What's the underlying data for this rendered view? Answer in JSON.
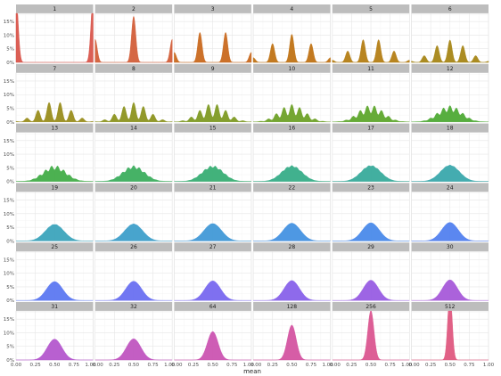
{
  "chart_data": {
    "type": "area",
    "xlabel": "mean",
    "ylabel": "",
    "xlim": [
      0,
      1
    ],
    "ylim": [
      0,
      0.18
    ],
    "x_ticks": [
      "0.00",
      "0.25",
      "0.50",
      "0.75",
      "1.00"
    ],
    "y_ticks": [
      "0%",
      "5%",
      "10%",
      "15%"
    ],
    "y_tick_values": [
      0,
      0.05,
      0.1,
      0.15
    ],
    "grid": true,
    "legend": "none",
    "layout": {
      "rows": 6,
      "cols": 6
    },
    "panels": [
      {
        "label": "1",
        "n": 1,
        "color": "#d9564c"
      },
      {
        "label": "2",
        "n": 2,
        "color": "#d35f3a"
      },
      {
        "label": "3",
        "n": 3,
        "color": "#c9691f"
      },
      {
        "label": "4",
        "n": 4,
        "color": "#c07315"
      },
      {
        "label": "5",
        "n": 5,
        "color": "#b47e15"
      },
      {
        "label": "6",
        "n": 6,
        "color": "#a78617"
      },
      {
        "label": "7",
        "n": 7,
        "color": "#998d1c"
      },
      {
        "label": "8",
        "n": 8,
        "color": "#8c941f"
      },
      {
        "label": "9",
        "n": 9,
        "color": "#7e9a23"
      },
      {
        "label": "10",
        "n": 10,
        "color": "#6ea127"
      },
      {
        "label": "11",
        "n": 11,
        "color": "#5ea62c"
      },
      {
        "label": "12",
        "n": 12,
        "color": "#4eaa35"
      },
      {
        "label": "13",
        "n": 13,
        "color": "#42ad48"
      },
      {
        "label": "14",
        "n": 14,
        "color": "#3cae5e"
      },
      {
        "label": "15",
        "n": 15,
        "color": "#38ae74"
      },
      {
        "label": "16",
        "n": 16,
        "color": "#37ad88"
      },
      {
        "label": "17",
        "n": 17,
        "color": "#38ab9b"
      },
      {
        "label": "18",
        "n": 18,
        "color": "#3aa8ac"
      },
      {
        "label": "19",
        "n": 19,
        "color": "#3ca4bc"
      },
      {
        "label": "20",
        "n": 20,
        "color": "#3e9fca"
      },
      {
        "label": "21",
        "n": 21,
        "color": "#4199d7"
      },
      {
        "label": "22",
        "n": 22,
        "color": "#4592e2"
      },
      {
        "label": "23",
        "n": 23,
        "color": "#4a8aea"
      },
      {
        "label": "24",
        "n": 24,
        "color": "#5281ef"
      },
      {
        "label": "25",
        "n": 25,
        "color": "#5c78f1"
      },
      {
        "label": "26",
        "n": 26,
        "color": "#6970f1"
      },
      {
        "label": "27",
        "n": 27,
        "color": "#7868ef"
      },
      {
        "label": "28",
        "n": 28,
        "color": "#8862ea"
      },
      {
        "label": "29",
        "n": 29,
        "color": "#985de3"
      },
      {
        "label": "30",
        "n": 30,
        "color": "#a75ad9"
      },
      {
        "label": "31",
        "n": 31,
        "color": "#b457cd"
      },
      {
        "label": "32",
        "n": 32,
        "color": "#c055c0"
      },
      {
        "label": "64",
        "n": 64,
        "color": "#cb54b1"
      },
      {
        "label": "128",
        "n": 128,
        "color": "#d454a1"
      },
      {
        "label": "256",
        "n": 256,
        "color": "#db5690"
      },
      {
        "label": "512",
        "n": 512,
        "color": "#df597f"
      }
    ]
  }
}
